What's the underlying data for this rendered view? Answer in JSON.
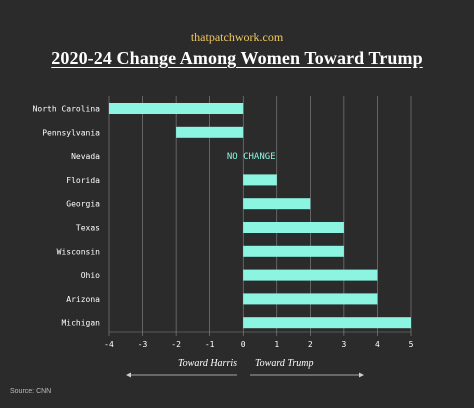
{
  "header": {
    "site": "thatpatchwork.com",
    "title": "2020-24 Change Among Women Toward Trump"
  },
  "colors": {
    "background": "#2b2b2b",
    "bar": "#8cf5e1",
    "site": "#f0c95c",
    "grid": "#8a8a8a"
  },
  "chart_data": {
    "type": "bar",
    "orientation": "horizontal",
    "title": "2020-24 Change Among Women Toward Trump",
    "categories": [
      "North Carolina",
      "Pennsylvania",
      "Nevada",
      "Florida",
      "Georgia",
      "Texas",
      "Wisconsin",
      "Ohio",
      "Arizona",
      "Michigan"
    ],
    "values": [
      -4,
      -2,
      0,
      1,
      2,
      3,
      3,
      4,
      4,
      5
    ],
    "xlim": [
      -4,
      5
    ],
    "xticks": [
      "-4",
      "-3",
      "-2",
      "-1",
      "0",
      "1",
      "2",
      "3",
      "4",
      "5"
    ],
    "grid": true,
    "annotation": {
      "category": "Nevada",
      "text": "NO CHANGE"
    }
  },
  "axis_labels": {
    "left": "Toward Harris",
    "right": "Toward Trump"
  },
  "footer": {
    "source": "Source: CNN"
  }
}
